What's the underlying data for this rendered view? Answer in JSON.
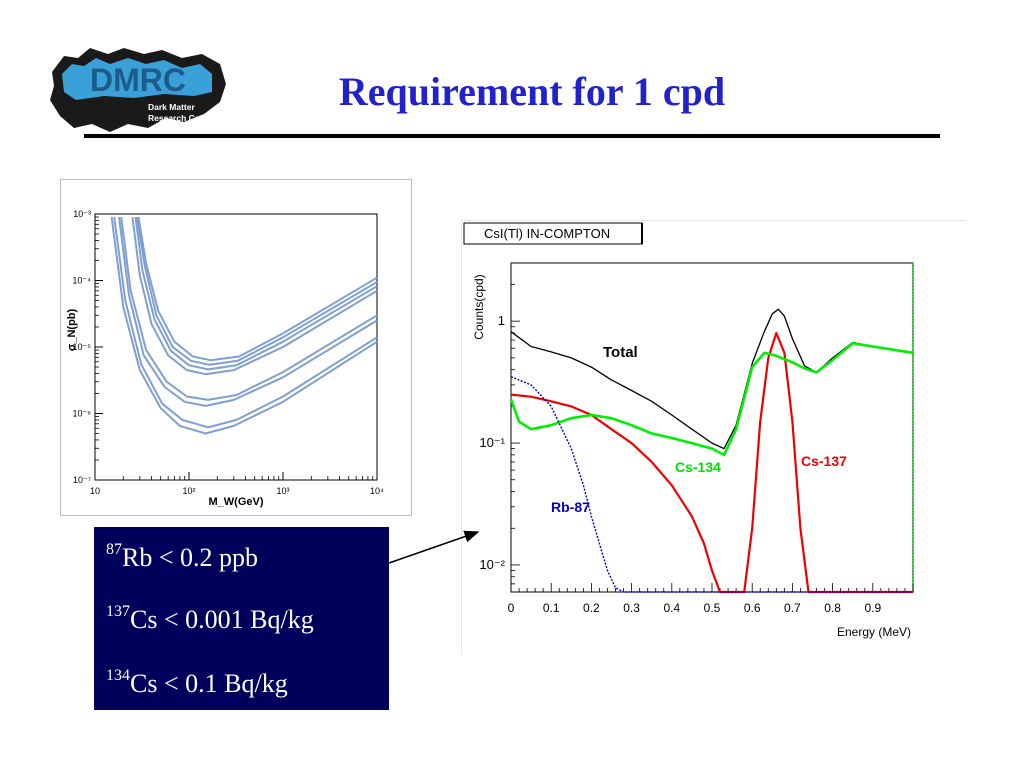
{
  "slide": {
    "title": "Requirement for 1 cpd"
  },
  "logo": {
    "name": "DMRC",
    "subtitle_line1": "Dark Matter",
    "subtitle_line2": "Research Center"
  },
  "infobox": {
    "rb_mass": "87",
    "rb_text": "Rb < 0.2 ppb",
    "cs137_mass": "137",
    "cs137_text": "Cs < 0.001 Bq/kg",
    "cs134_mass": "134",
    "cs134_text": "Cs < 0.1 Bq/kg"
  },
  "colors": {
    "title": "#2222cc",
    "infobox_bg": "#00005c",
    "exclusion_curves": "#7f9fd4",
    "total": "#000000",
    "cs137": "#ee0000",
    "cs134": "#00ee00",
    "rb87": "#0000cc"
  },
  "chart_data": [
    {
      "type": "line",
      "xlabel": "M_W(GeV)",
      "ylabel": "σ_N(pb)",
      "xscale": "log",
      "yscale": "log",
      "xlim": [
        10,
        10000
      ],
      "ylim": [
        1e-07,
        0.001
      ],
      "xticks": [
        "10",
        "10²",
        "10³",
        "10⁴"
      ],
      "yticks": [
        "10⁻³",
        "10⁻⁴",
        "10⁻⁵",
        "10⁻⁶",
        "10⁻⁷"
      ],
      "grid": false,
      "series": [
        {
          "x": [
            15,
            20,
            30,
            50,
            80,
            150,
            300,
            1000,
            10000
          ],
          "y": [
            0.0009,
            4e-05,
            4.5e-06,
            1.2e-06,
            6.5e-07,
            5e-07,
            6.5e-07,
            1.5e-06,
            1.2e-05
          ]
        },
        {
          "x": [
            16,
            21,
            31,
            52,
            85,
            160,
            320,
            1000,
            10000
          ],
          "y": [
            0.0009,
            5e-05,
            5.5e-06,
            1.4e-06,
            8e-07,
            6.2e-07,
            8e-07,
            1.8e-06,
            1.4e-05
          ]
        },
        {
          "x": [
            18,
            23,
            33,
            55,
            90,
            150,
            300,
            1000,
            10000
          ],
          "y": [
            0.0009,
            6e-05,
            7.5e-06,
            2.5e-06,
            1.5e-06,
            1.3e-06,
            1.6e-06,
            3.5e-06,
            2.5e-05
          ]
        },
        {
          "x": [
            19,
            24,
            35,
            58,
            95,
            160,
            320,
            1000,
            10000
          ],
          "y": [
            0.0009,
            7e-05,
            9e-06,
            3e-06,
            1.8e-06,
            1.6e-06,
            1.9e-06,
            4.2e-06,
            3e-05
          ]
        },
        {
          "x": [
            25,
            30,
            40,
            60,
            95,
            150,
            300,
            1000,
            10000
          ],
          "y": [
            0.0009,
            0.00012,
            2.2e-05,
            7.5e-06,
            4.5e-06,
            3.9e-06,
            4.5e-06,
            1e-05,
            7e-05
          ]
        },
        {
          "x": [
            27,
            32,
            43,
            64,
            100,
            160,
            320,
            1000,
            10000
          ],
          "y": [
            0.0009,
            0.00014,
            2.6e-05,
            8.8e-06,
            5.3e-06,
            4.6e-06,
            5.3e-06,
            1.2e-05,
            8.2e-05
          ]
        },
        {
          "x": [
            28,
            34,
            45,
            67,
            105,
            165,
            330,
            1000,
            10000
          ],
          "y": [
            0.0009,
            0.00016,
            3e-05,
            1e-05,
            6.2e-06,
            5.4e-06,
            6.2e-06,
            1.4e-05,
            9.5e-05
          ]
        },
        {
          "x": [
            29,
            35,
            47,
            70,
            110,
            170,
            340,
            1000,
            10000
          ],
          "y": [
            0.0009,
            0.00018,
            3.5e-05,
            1.2e-05,
            7.2e-06,
            6.3e-06,
            7.2e-06,
            1.6e-05,
            0.00011
          ]
        }
      ]
    },
    {
      "type": "line",
      "title": "CsI(Tl) IN-COMPTON",
      "xlabel": "Energy (MeV)",
      "ylabel": "Counts(cpd)",
      "xlim": [
        0,
        1
      ],
      "ylim": [
        0.006,
        3
      ],
      "yscale": "log",
      "xticks": [
        "0",
        "0.1",
        "0.2",
        "0.3",
        "0.4",
        "0.5",
        "0.6",
        "0.7",
        "0.8",
        "0.9"
      ],
      "yticks": [
        "1",
        "10⁻¹",
        "10⁻²"
      ],
      "grid": false,
      "series": [
        {
          "name": "Total",
          "x": [
            0,
            0.05,
            0.1,
            0.15,
            0.2,
            0.25,
            0.3,
            0.35,
            0.4,
            0.45,
            0.5,
            0.53,
            0.56,
            0.6,
            0.63,
            0.65,
            0.665,
            0.68,
            0.7,
            0.73,
            0.76,
            0.8,
            0.85,
            0.9,
            1.0
          ],
          "y": [
            0.82,
            0.62,
            0.56,
            0.5,
            0.42,
            0.33,
            0.27,
            0.22,
            0.17,
            0.13,
            0.1,
            0.09,
            0.14,
            0.45,
            0.82,
            1.15,
            1.25,
            1.1,
            0.72,
            0.43,
            0.38,
            0.5,
            0.67,
            0.62,
            0.55
          ]
        },
        {
          "name": "Cs-137",
          "x": [
            0,
            0.05,
            0.1,
            0.15,
            0.2,
            0.25,
            0.3,
            0.35,
            0.4,
            0.45,
            0.48,
            0.5,
            0.52,
            0.55,
            0.58,
            0.6,
            0.62,
            0.64,
            0.66,
            0.68,
            0.7,
            0.72,
            0.74,
            0.76,
            0.8,
            1.0
          ],
          "y": [
            0.25,
            0.24,
            0.22,
            0.2,
            0.17,
            0.13,
            0.1,
            0.07,
            0.045,
            0.025,
            0.015,
            0.009,
            0.006,
            0.006,
            0.006,
            0.02,
            0.15,
            0.5,
            0.8,
            0.55,
            0.15,
            0.02,
            0.006,
            0.006,
            0.006,
            0.006
          ]
        },
        {
          "name": "Cs-134",
          "x": [
            0,
            0.02,
            0.05,
            0.1,
            0.15,
            0.2,
            0.25,
            0.3,
            0.35,
            0.4,
            0.45,
            0.5,
            0.53,
            0.56,
            0.6,
            0.63,
            0.66,
            0.7,
            0.73,
            0.76,
            0.8,
            0.85,
            0.9,
            1.0
          ],
          "y": [
            0.23,
            0.15,
            0.13,
            0.14,
            0.16,
            0.17,
            0.16,
            0.14,
            0.12,
            0.11,
            0.1,
            0.09,
            0.08,
            0.13,
            0.42,
            0.55,
            0.52,
            0.46,
            0.41,
            0.38,
            0.48,
            0.66,
            0.62,
            0.55
          ]
        },
        {
          "name": "Rb-87",
          "x": [
            0,
            0.05,
            0.1,
            0.15,
            0.18,
            0.2,
            0.22,
            0.24,
            0.26,
            0.28,
            0.3,
            1.0
          ],
          "y": [
            0.35,
            0.3,
            0.2,
            0.09,
            0.045,
            0.025,
            0.015,
            0.009,
            0.0065,
            0.006,
            0.006,
            0.006
          ]
        }
      ]
    }
  ]
}
